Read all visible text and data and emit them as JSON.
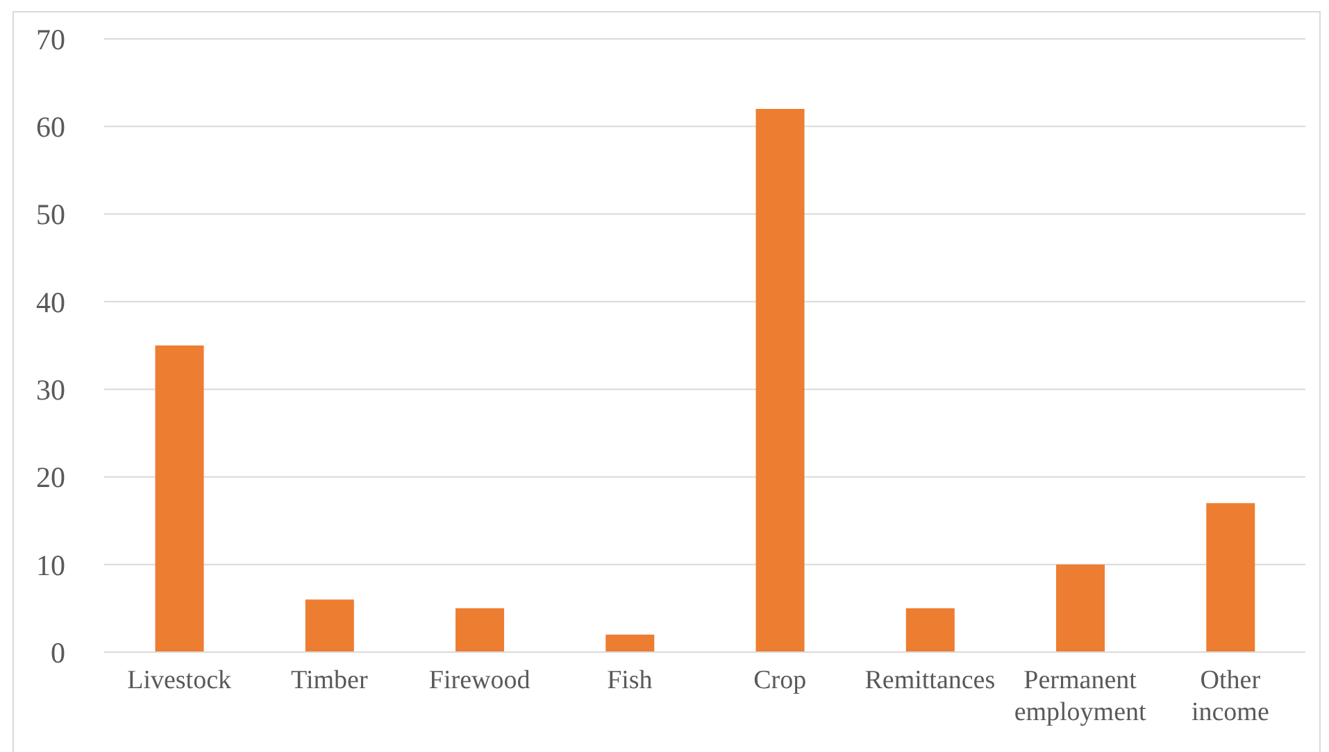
{
  "chart_data": {
    "type": "bar",
    "categories": [
      "Livestock",
      "Timber",
      "Firewood",
      "Fish",
      "Crop",
      "Remittances",
      "Permanent employment",
      "Other income"
    ],
    "values": [
      35,
      6,
      5,
      2,
      62,
      5,
      10,
      17
    ],
    "color": "#ed7d31",
    "ylim": [
      0,
      70
    ],
    "yticks": [
      0,
      10,
      20,
      30,
      40,
      50,
      60,
      70
    ],
    "grid": "y",
    "legend": false
  }
}
